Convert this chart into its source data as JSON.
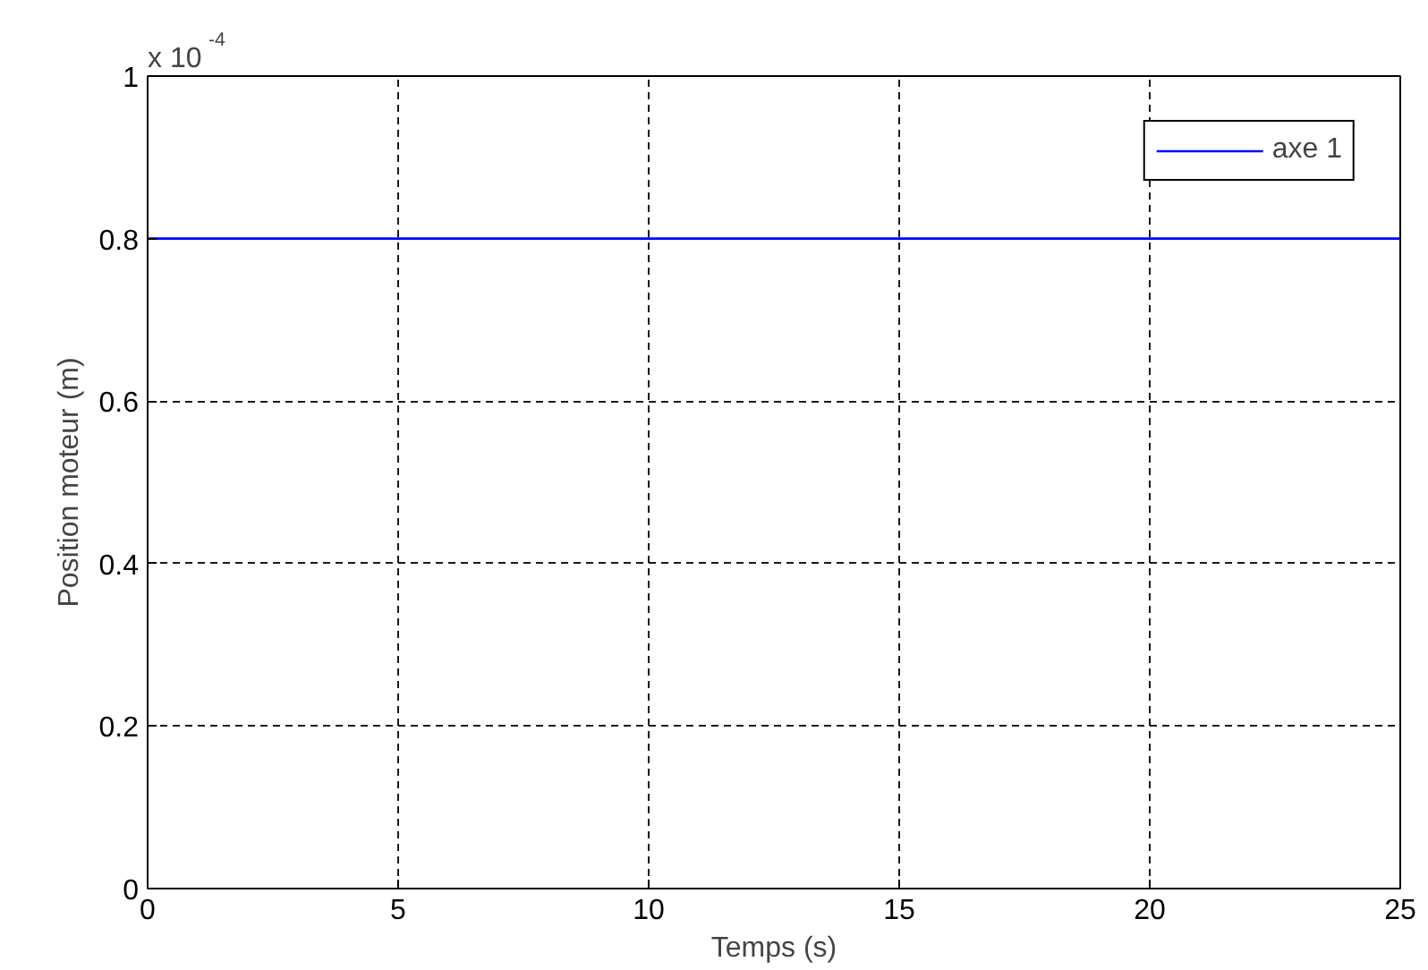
{
  "chart_data": {
    "type": "line",
    "xlabel": "Temps (s)",
    "ylabel": "Position moteur (m)",
    "x": [
      0,
      25
    ],
    "series": [
      {
        "name": "axe 1",
        "color": "#0000ff",
        "values": [
          0.8,
          0.8
        ]
      }
    ],
    "xlim": [
      0,
      25
    ],
    "xticks": [
      0,
      5,
      10,
      15,
      20,
      25
    ],
    "ylim": [
      0,
      1
    ],
    "yticks": [
      0,
      0.2,
      0.4,
      0.6,
      0.8,
      1
    ],
    "grid": true,
    "legend": "top right",
    "line_style": "solid",
    "annotations": [
      "x 10$^{-4}$"
    ]
  }
}
